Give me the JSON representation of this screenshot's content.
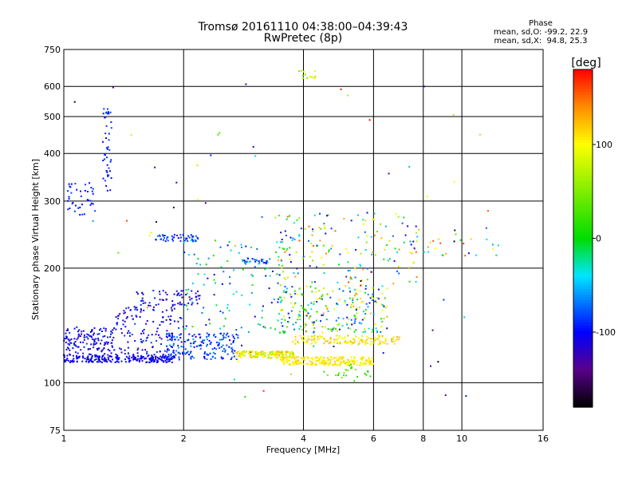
{
  "chart_data": {
    "type": "scatter",
    "title": "Tromsø 20161110 04:38:00–04:39:43",
    "subtitle": "RwPretec (8p)",
    "xlabel": "Frequency [MHz]",
    "ylabel": "Stationary phase Virtual Height [km]",
    "x_scale": "log",
    "y_scale": "log",
    "xlim": [
      1,
      16
    ],
    "ylim": [
      75,
      750
    ],
    "x_ticks": [
      1,
      2,
      4,
      6,
      8,
      10,
      16
    ],
    "x_tick_labels": [
      "1",
      "2",
      "4",
      "6",
      "8",
      "10",
      "16"
    ],
    "y_ticks": [
      75,
      100,
      200,
      300,
      400,
      500,
      600,
      750
    ],
    "y_tick_labels": [
      "75",
      "100",
      "200",
      "300",
      "400",
      "500",
      "600",
      "750"
    ],
    "grid": true,
    "colorbar": {
      "label": "[deg]",
      "range": [
        -180,
        180
      ],
      "ticks": [
        100,
        0,
        -100
      ],
      "tick_labels": [
        "100",
        "0",
        "-100"
      ]
    },
    "phase_stats": {
      "heading": "Phase",
      "line_o": "mean, sd,O: -99.2, 22.9",
      "line_x": "mean, sd,X:  94.8, 25.3"
    },
    "clusters": [
      {
        "f": [
          1.0,
          1.9
        ],
        "h": [
          113,
          118
        ],
        "phase": [
          -115,
          -95
        ],
        "n": 230
      },
      {
        "f": [
          1.0,
          1.35
        ],
        "h": [
          118,
          140
        ],
        "phase": [
          -125,
          -85
        ],
        "n": 140
      },
      {
        "f": [
          1.35,
          2.0
        ],
        "h": [
          118,
          160
        ],
        "phase": [
          -130,
          -80
        ],
        "n": 150
      },
      {
        "f": [
          1.5,
          2.2
        ],
        "h": [
          160,
          175
        ],
        "phase": [
          -130,
          -80
        ],
        "n": 60
      },
      {
        "f": [
          1.8,
          2.8
        ],
        "h": [
          115,
          135
        ],
        "phase": [
          -110,
          -60
        ],
        "n": 170
      },
      {
        "f": [
          2.7,
          3.8
        ],
        "h": [
          116,
          121
        ],
        "phase": [
          60,
          130
        ],
        "n": 160
      },
      {
        "f": [
          3.5,
          6.0
        ],
        "h": [
          111,
          117
        ],
        "phase": [
          90,
          120
        ],
        "n": 220
      },
      {
        "f": [
          3.7,
          7.0
        ],
        "h": [
          126,
          133
        ],
        "phase": [
          85,
          130
        ],
        "n": 140
      },
      {
        "f": [
          3.5,
          6.5
        ],
        "h": [
          135,
          180
        ],
        "phase": [
          -120,
          140
        ],
        "n": 230
      },
      {
        "f": [
          2.0,
          3.6
        ],
        "h": [
          135,
          240
        ],
        "phase": [
          -120,
          20
        ],
        "n": 110
      },
      {
        "f": [
          1.7,
          2.2
        ],
        "h": [
          235,
          245
        ],
        "phase": [
          -110,
          -70
        ],
        "n": 50
      },
      {
        "f": [
          2.8,
          3.3
        ],
        "h": [
          205,
          212
        ],
        "phase": [
          -110,
          -50
        ],
        "n": 30
      },
      {
        "f": [
          3.4,
          7.8
        ],
        "h": [
          180,
          280
        ],
        "phase": [
          -120,
          160
        ],
        "n": 180
      },
      {
        "f": [
          4.5,
          5.9
        ],
        "h": [
          103,
          112
        ],
        "phase": [
          0,
          60
        ],
        "n": 25
      },
      {
        "f": [
          1.25,
          1.32
        ],
        "h": [
          310,
          530
        ],
        "phase": [
          -110,
          -80
        ],
        "n": 45
      },
      {
        "f": [
          1.02,
          1.2
        ],
        "h": [
          275,
          335
        ],
        "phase": [
          -110,
          -80
        ],
        "n": 40
      },
      {
        "f": [
          8.0,
          12.5
        ],
        "h": [
          215,
          240
        ],
        "phase": [
          -60,
          170
        ],
        "n": 20
      },
      {
        "f": [
          3.9,
          4.3
        ],
        "h": [
          630,
          660
        ],
        "phase": [
          30,
          110
        ],
        "n": 14
      },
      {
        "f": [
          1.0,
          12.0
        ],
        "h": [
          90,
          650
        ],
        "phase": [
          -180,
          180
        ],
        "n": 70
      }
    ]
  }
}
